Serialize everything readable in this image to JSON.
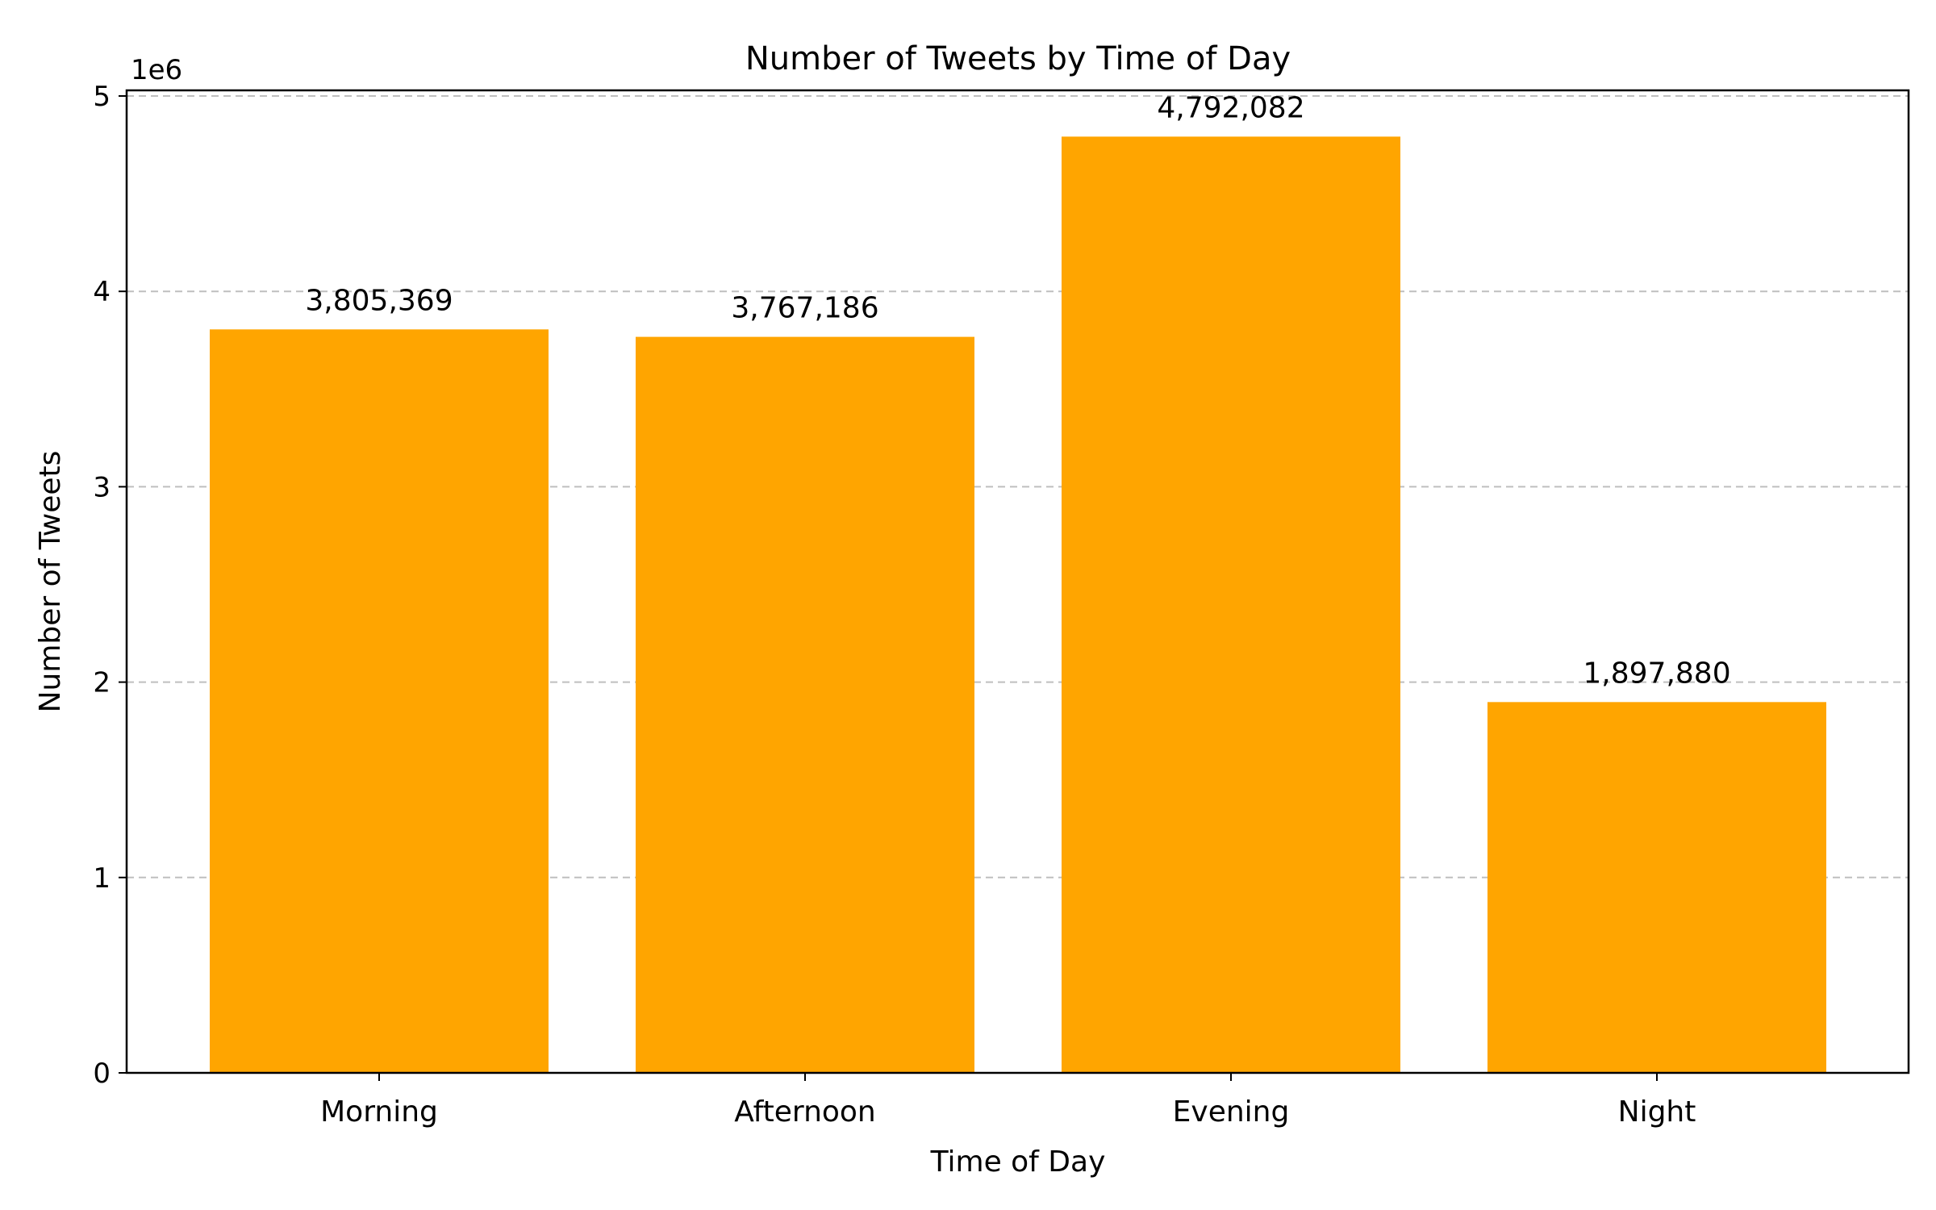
{
  "chart_data": {
    "type": "bar",
    "title": "Number of Tweets by Time of Day",
    "xlabel": "Time of Day",
    "ylabel": "Number of Tweets",
    "categories": [
      "Morning",
      "Afternoon",
      "Evening",
      "Night"
    ],
    "values": [
      3805369,
      3767186,
      4792082,
      1897880
    ],
    "data_labels": [
      "3,805,369",
      "3,767,186",
      "4,792,082",
      "1,897,880"
    ],
    "ylim": [
      0,
      5000000
    ],
    "y_ticks": [
      0,
      1000000,
      2000000,
      3000000,
      4000000,
      5000000
    ],
    "y_tick_labels": [
      "0",
      "1",
      "2",
      "3",
      "4",
      "5"
    ],
    "y_offset_label": "1e6",
    "grid": "y-dashed",
    "bar_color": "#FFA500",
    "grid_color": "#BFBFBF"
  }
}
